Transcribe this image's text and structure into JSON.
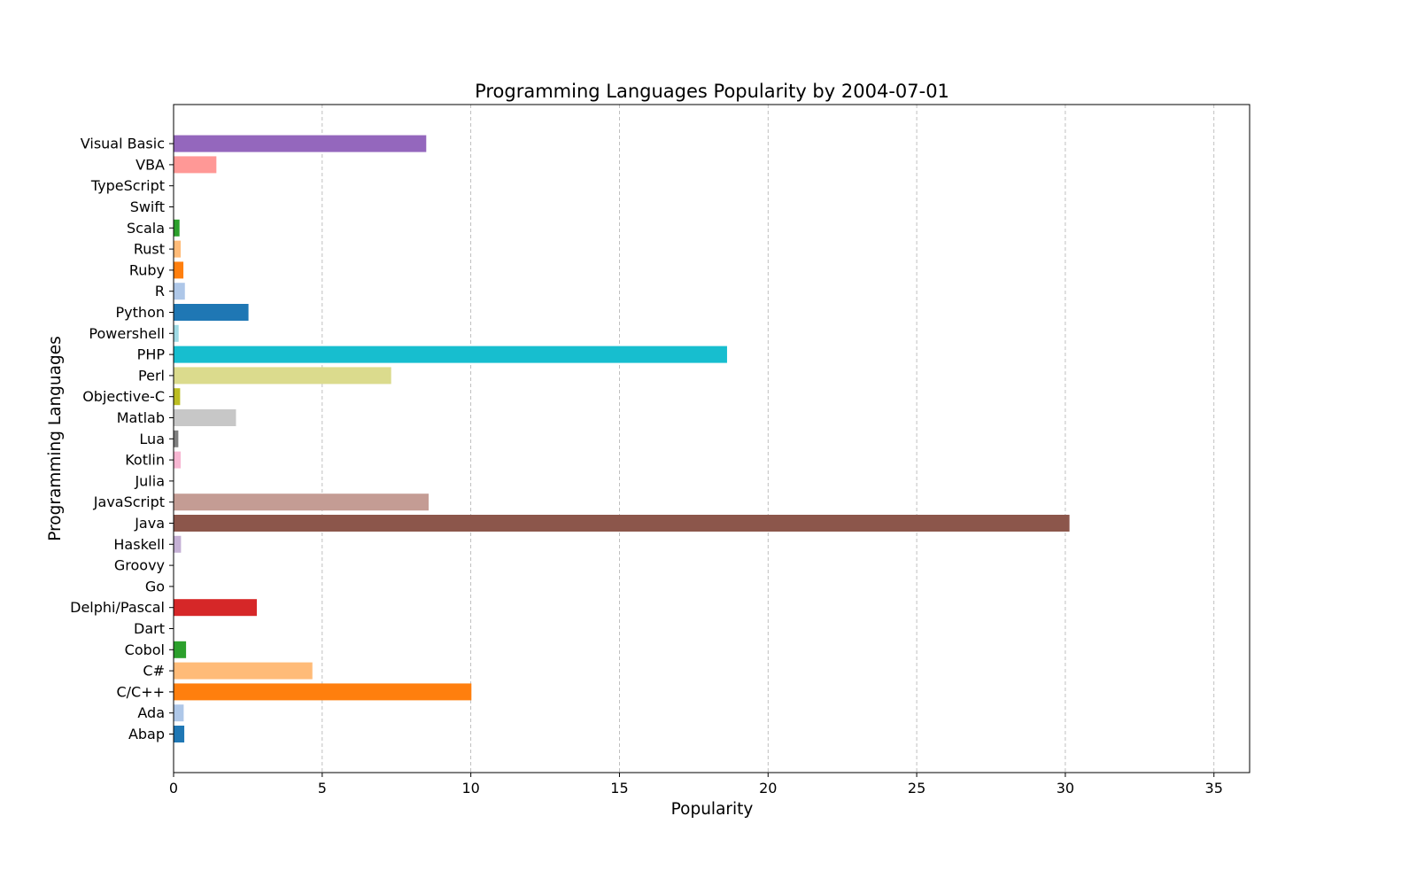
{
  "chart_data": {
    "type": "bar",
    "orientation": "horizontal",
    "title": "Programming Languages Popularity by 2004-07-01",
    "xlabel": "Popularity",
    "ylabel": "Programming Languages",
    "xlim": [
      0,
      36.2
    ],
    "xticks": [
      0,
      5,
      10,
      15,
      20,
      25,
      30,
      35
    ],
    "grid": "x-axis, dashed",
    "legend": "none",
    "categories": [
      "Abap",
      "Ada",
      "C/C++",
      "C#",
      "Cobol",
      "Dart",
      "Delphi/Pascal",
      "Go",
      "Groovy",
      "Haskell",
      "Java",
      "JavaScript",
      "Julia",
      "Kotlin",
      "Lua",
      "Matlab",
      "Objective-C",
      "Perl",
      "PHP",
      "Powershell",
      "Python",
      "R",
      "Ruby",
      "Rust",
      "Scala",
      "Swift",
      "TypeScript",
      "VBA",
      "Visual Basic"
    ],
    "values": [
      0.36,
      0.34,
      10.02,
      4.67,
      0.42,
      0,
      2.8,
      0,
      0,
      0.25,
      30.14,
      8.58,
      0,
      0.24,
      0.16,
      2.1,
      0.22,
      7.32,
      18.62,
      0.17,
      2.52,
      0.38,
      0.33,
      0.24,
      0.2,
      0,
      0,
      1.44,
      8.5
    ],
    "colors": [
      "#1f77b4",
      "#aec7e8",
      "#ff7f0e",
      "#ffbb78",
      "#2ca02c",
      "#98df8a",
      "#d62728",
      "#ff9896",
      "#9467bd",
      "#c5b0d5",
      "#8c564b",
      "#c49c94",
      "#e377c2",
      "#f7b6d2",
      "#7f7f7f",
      "#c7c7c7",
      "#bcbd22",
      "#dbdb8d",
      "#17becf",
      "#9edae5",
      "#1f77b4",
      "#aec7e8",
      "#ff7f0e",
      "#ffbb78",
      "#2ca02c",
      "#98df8a",
      "#d62728",
      "#ff9896",
      "#9467bd"
    ]
  }
}
